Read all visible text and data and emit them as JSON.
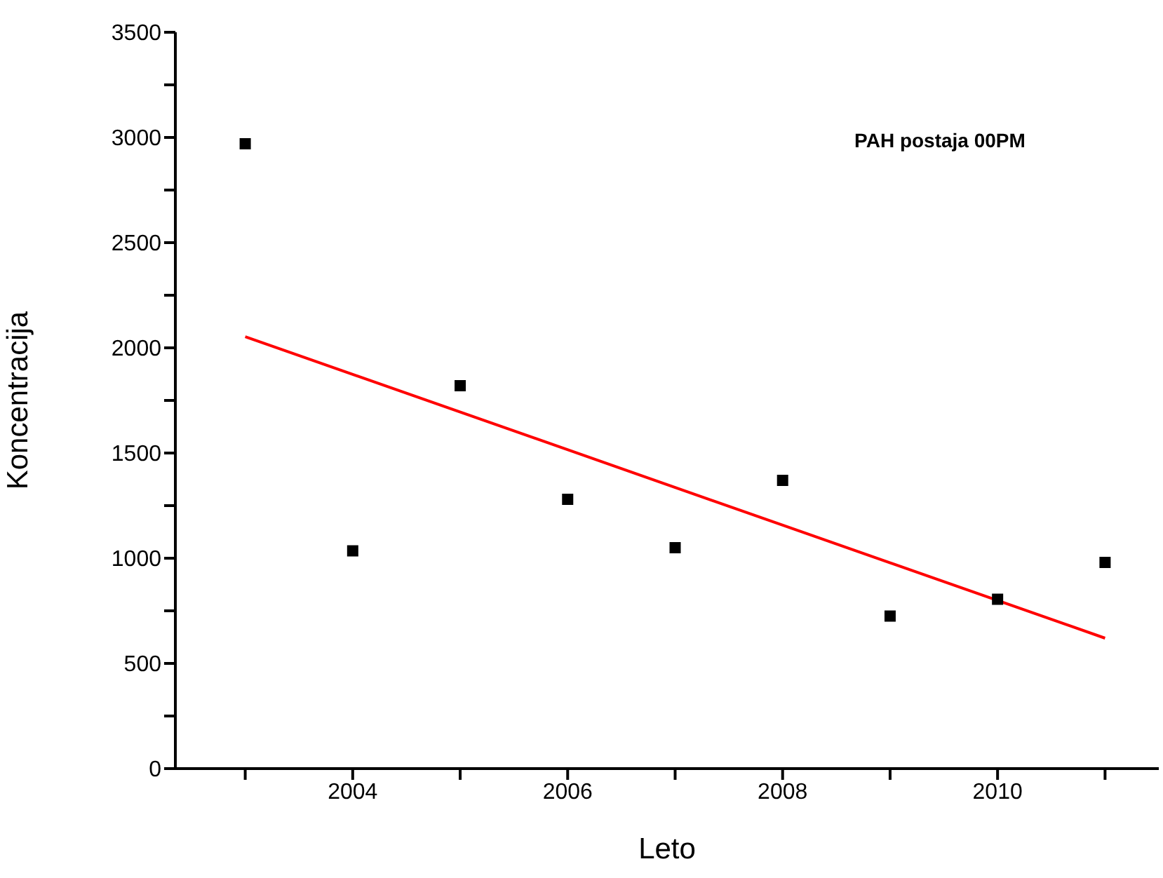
{
  "chart_data": {
    "type": "scatter",
    "xlabel": "Leto",
    "ylabel": "Koncentracija",
    "annotations": [
      "PAH postaja 00PM"
    ],
    "x": [
      2003,
      2004,
      2005,
      2006,
      2007,
      2008,
      2009,
      2010,
      2011
    ],
    "series": [
      {
        "color": "#000000",
        "marker": "square",
        "values": [
          2970,
          1035,
          1820,
          1280,
          1050,
          1370,
          725,
          805,
          980
        ]
      },
      {
        "type": "line",
        "color": "#ff0000",
        "x": [
          2003,
          2011
        ],
        "values": [
          2053,
          620
        ]
      }
    ],
    "xlim": [
      2002.35,
      2011.5
    ],
    "xticks": [
      {
        "value": 2003,
        "label": null
      },
      2004,
      {
        "value": 2005,
        "label": null
      },
      2006,
      {
        "value": 2007,
        "label": null
      },
      2008,
      {
        "value": 2009,
        "label": null
      },
      2010,
      {
        "value": 2011,
        "label": null
      }
    ],
    "ylim": [
      0,
      3500
    ],
    "yticks": [
      0,
      {
        "value": 250,
        "label": null
      },
      500,
      {
        "value": 750,
        "label": null
      },
      1000,
      {
        "value": 1250,
        "label": null
      },
      1500,
      {
        "value": 1750,
        "label": null
      },
      2000,
      {
        "value": 2250,
        "label": null
      },
      2500,
      {
        "value": 2750,
        "label": null
      },
      3000,
      {
        "value": 3250,
        "label": null
      },
      3500
    ],
    "grid": false
  }
}
